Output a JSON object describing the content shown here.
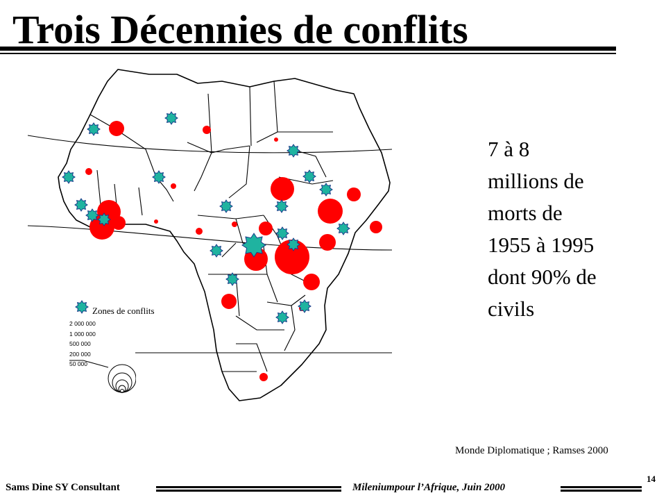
{
  "slide": {
    "title": "Trois Décennies de conflits",
    "page_number": "14"
  },
  "map": {
    "region": "Afrique",
    "legend": {
      "symbol_label": "Zones de conflits",
      "symbol_icon": "conflict-star-icon",
      "scale_label_items": [
        "2 000 000",
        "1 000 000",
        "500 000",
        "200 000",
        "50 000"
      ]
    },
    "colors": {
      "casualty_circle": "#ff0000",
      "conflict_star": "#1fb3a0",
      "conflict_star_outline": "#1a3a8a"
    }
  },
  "stat": {
    "lines": [
      "7 à 8",
      "millions de",
      "morts de",
      "1955 à 1995",
      "dont 90% de",
      "civils"
    ]
  },
  "source": "Monde Diplomatique  ; Ramses 2000",
  "footer": {
    "left": "Sams Dine SY Consultant",
    "center": "Mileniumpour l’Afrique, Juin 2000"
  }
}
